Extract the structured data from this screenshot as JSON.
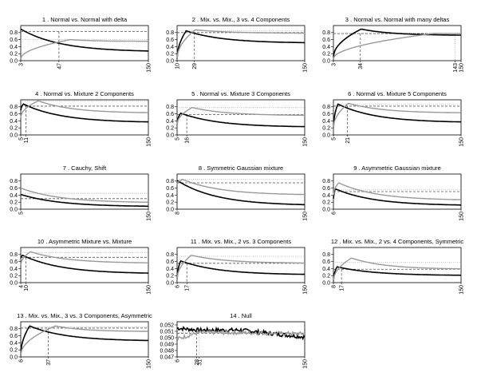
{
  "colors": {
    "black": "#000000",
    "gray": "#999999",
    "dashed": "#555555",
    "dotted": "#b0b0b0"
  },
  "chart_data": [
    {
      "type": "line",
      "title": "1 .  Normal vs. Normal with delta",
      "x_start": 3,
      "x_end": 150,
      "marks": [
        47
      ],
      "ylim": [
        0,
        1.0
      ],
      "yticks": [
        "0.0",
        "0.2",
        "0.4",
        "0.6",
        "0.8"
      ],
      "hline_dashed": 0.83,
      "hline_dotted": 0.6,
      "series": [
        {
          "color": "black",
          "peak_x": 3,
          "peak_y": 0.9,
          "end_y": 0.25,
          "start_y": 0.9
        },
        {
          "color": "gray",
          "peak_x": 60,
          "peak_y": 0.6,
          "end_y": 0.55,
          "start_y": 0.05
        }
      ]
    },
    {
      "type": "line",
      "title": "2 .  Mix. vs. Mix., 3  vs. 4 Components",
      "x_start": 10,
      "x_end": 150,
      "marks": [
        29
      ],
      "ylim": [
        0,
        1.0
      ],
      "yticks": [
        "0.0",
        "0.2",
        "0.4",
        "0.6",
        "0.8"
      ],
      "hline_dashed": 0.8,
      "hline_dotted": 0.85,
      "series": [
        {
          "color": "black",
          "peak_x": 20,
          "peak_y": 0.85,
          "end_y": 0.5,
          "start_y": 0.05
        },
        {
          "color": "gray",
          "peak_x": 30,
          "peak_y": 0.88,
          "end_y": 0.78,
          "start_y": 0.05
        }
      ]
    },
    {
      "type": "line",
      "title": "3 .  Normal vs. Normal with many deltas",
      "x_start": 3,
      "x_end": 150,
      "marks": [
        34,
        143
      ],
      "ylim": [
        0,
        1.0
      ],
      "yticks": [
        "0.0",
        "0.2",
        "0.4",
        "0.6",
        "0.8"
      ],
      "hline_dashed": 0.77,
      "hline_dotted": 0.78,
      "series": [
        {
          "color": "black",
          "peak_x": 35,
          "peak_y": 0.9,
          "end_y": 0.72,
          "start_y": 0.1
        },
        {
          "color": "gray",
          "peak_x": 120,
          "peak_y": 0.78,
          "end_y": 0.77,
          "start_y": 0.05
        }
      ]
    },
    {
      "type": "line",
      "title": "4 .  Normal vs. Mixture 2 Components",
      "x_start": 5,
      "x_end": 150,
      "marks": [
        11
      ],
      "ylim": [
        0,
        1.0
      ],
      "yticks": [
        "0.0",
        "0.2",
        "0.4",
        "0.6",
        "0.8"
      ],
      "hline_dashed": 0.82,
      "hline_dotted": 0.96,
      "series": [
        {
          "color": "black",
          "peak_x": 8,
          "peak_y": 0.88,
          "end_y": 0.35,
          "start_y": 0.7
        },
        {
          "color": "gray",
          "peak_x": 25,
          "peak_y": 0.97,
          "end_y": 0.62,
          "start_y": 0.5
        }
      ]
    },
    {
      "type": "line",
      "title": "5 .  Normal vs. Mixture 3 Components",
      "x_start": 5,
      "x_end": 150,
      "marks": [
        16
      ],
      "ylim": [
        0,
        1.0
      ],
      "yticks": [
        "0.0",
        "0.2",
        "0.4",
        "0.6",
        "0.8"
      ],
      "hline_dashed": 0.58,
      "hline_dotted": 0.78,
      "series": [
        {
          "color": "black",
          "peak_x": 9,
          "peak_y": 0.62,
          "end_y": 0.22,
          "start_y": 0.3
        },
        {
          "color": "gray",
          "peak_x": 22,
          "peak_y": 0.78,
          "end_y": 0.55,
          "start_y": 0.3
        }
      ]
    },
    {
      "type": "line",
      "title": "6 .  Normal vs. Mixture 5 Components",
      "x_start": 5,
      "x_end": 150,
      "marks": [
        21
      ],
      "ylim": [
        0,
        1.0
      ],
      "yticks": [
        "0.0",
        "0.2",
        "0.4",
        "0.6",
        "0.8"
      ],
      "hline_dashed": 0.82,
      "hline_dotted": 0.88,
      "series": [
        {
          "color": "black",
          "peak_x": 10,
          "peak_y": 0.88,
          "end_y": 0.35,
          "start_y": 0.2
        },
        {
          "color": "gray",
          "peak_x": 22,
          "peak_y": 0.9,
          "end_y": 0.62,
          "start_y": 0.2
        }
      ]
    },
    {
      "type": "line",
      "title": "7 .  Cauchy, Shift",
      "x_start": 5,
      "x_end": 150,
      "marks": [],
      "ylim": [
        0,
        1.0
      ],
      "yticks": [
        "0.0",
        "0.2",
        "0.4",
        "0.6",
        "0.8"
      ],
      "hline_dashed": 0.3,
      "hline_dotted": 0.45,
      "series": [
        {
          "color": "black",
          "peak_x": 5,
          "peak_y": 0.42,
          "end_y": 0.07,
          "start_y": 0.42
        },
        {
          "color": "gray",
          "peak_x": 5,
          "peak_y": 0.6,
          "end_y": 0.18,
          "start_y": 0.6
        }
      ]
    },
    {
      "type": "line",
      "title": "8 .  Symmetric Gaussian mixture",
      "x_start": 8,
      "x_end": 150,
      "marks": [],
      "ylim": [
        0,
        1.0
      ],
      "yticks": [
        "0.0",
        "0.2",
        "0.4",
        "0.6",
        "0.8"
      ],
      "hline_dashed": 0.75,
      "hline_dotted": 0.85,
      "series": [
        {
          "color": "black",
          "peak_x": 8,
          "peak_y": 0.82,
          "end_y": 0.1,
          "start_y": 0.82
        },
        {
          "color": "gray",
          "peak_x": 14,
          "peak_y": 0.85,
          "end_y": 0.4,
          "start_y": 0.7
        }
      ]
    },
    {
      "type": "line",
      "title": "9 .  Asymmetric Gaussian mixture",
      "x_start": 6,
      "x_end": 150,
      "marks": [],
      "ylim": [
        0,
        1.0
      ],
      "yticks": [
        "0.0",
        "0.2",
        "0.4",
        "0.6",
        "0.8"
      ],
      "hline_dashed": 0.5,
      "hline_dotted": 0.55,
      "series": [
        {
          "color": "black",
          "peak_x": 8,
          "peak_y": 0.58,
          "end_y": 0.1,
          "start_y": 0.3
        },
        {
          "color": "gray",
          "peak_x": 12,
          "peak_y": 0.75,
          "end_y": 0.25,
          "start_y": 0.4
        }
      ]
    },
    {
      "type": "line",
      "title": "10 .  Asymmetric Mixture vs. Mixture",
      "x_start": 4,
      "x_end": 150,
      "marks": [
        10
      ],
      "ylim": [
        0,
        1.0
      ],
      "yticks": [
        "0.0",
        "0.2",
        "0.4",
        "0.6",
        "0.8"
      ],
      "hline_dashed": 0.72,
      "hline_dotted": 0.85,
      "series": [
        {
          "color": "black",
          "peak_x": 6,
          "peak_y": 0.78,
          "end_y": 0.25,
          "start_y": 0.7
        },
        {
          "color": "gray",
          "peak_x": 15,
          "peak_y": 0.88,
          "end_y": 0.55,
          "start_y": 0.5
        }
      ]
    },
    {
      "type": "line",
      "title": "11 .  Mix. vs. Mix., 2  vs. 3 Components",
      "x_start": 6,
      "x_end": 150,
      "marks": [
        17
      ],
      "ylim": [
        0,
        1.0
      ],
      "yticks": [
        "0.0",
        "0.2",
        "0.4",
        "0.6",
        "0.8"
      ],
      "hline_dashed": 0.55,
      "hline_dotted": 0.75,
      "series": [
        {
          "color": "black",
          "peak_x": 10,
          "peak_y": 0.62,
          "end_y": 0.22,
          "start_y": 0.1
        },
        {
          "color": "gray",
          "peak_x": 22,
          "peak_y": 0.78,
          "end_y": 0.55,
          "start_y": 0.1
        }
      ]
    },
    {
      "type": "line",
      "title": "12 .  Mix. vs. Mix., 2  vs. 4 Components, Symmetric",
      "x_start": 8,
      "x_end": 150,
      "marks": [
        17
      ],
      "ylim": [
        0,
        1.0
      ],
      "yticks": [
        "0.0",
        "0.2",
        "0.4",
        "0.6",
        "0.8"
      ],
      "hline_dashed": 0.38,
      "hline_dotted": 0.58,
      "series": [
        {
          "color": "black",
          "peak_x": 12,
          "peak_y": 0.45,
          "end_y": 0.2,
          "start_y": 0.05
        },
        {
          "color": "gray",
          "peak_x": 28,
          "peak_y": 0.7,
          "end_y": 0.38,
          "start_y": 0.05
        }
      ]
    },
    {
      "type": "line",
      "title": "13 .  Mix. vs. Mix., 3  vs. 3 Components, Asymmetric",
      "x_start": 6,
      "x_end": 150,
      "marks": [
        37
      ],
      "ylim": [
        0,
        1.0
      ],
      "yticks": [
        "0.0",
        "0.2",
        "0.4",
        "0.6",
        "0.8"
      ],
      "hline_dashed": 0.82,
      "hline_dotted": 0.85,
      "series": [
        {
          "color": "black",
          "peak_x": 16,
          "peak_y": 0.88,
          "end_y": 0.45,
          "start_y": 0.05
        },
        {
          "color": "gray",
          "peak_x": 45,
          "peak_y": 0.88,
          "end_y": 0.72,
          "start_y": 0.05
        }
      ]
    },
    {
      "type": "line",
      "title": "14 .  Null",
      "x_start": 6,
      "x_end": 150,
      "marks": [
        28,
        31
      ],
      "ylim": [
        0.047,
        0.0525
      ],
      "yticks": [
        "0.047",
        "0.048",
        "0.049",
        "0.050",
        "0.051",
        "0.052"
      ],
      "hline_dashed": 0.0507,
      "hline_dotted": 0.0508,
      "noisy": true,
      "series": [
        {
          "color": "black",
          "level": 0.0512,
          "end_y": 0.0501,
          "start_y": 0.0515
        },
        {
          "color": "gray",
          "level": 0.0508,
          "end_y": 0.0506,
          "start_y": 0.0498
        }
      ]
    }
  ]
}
